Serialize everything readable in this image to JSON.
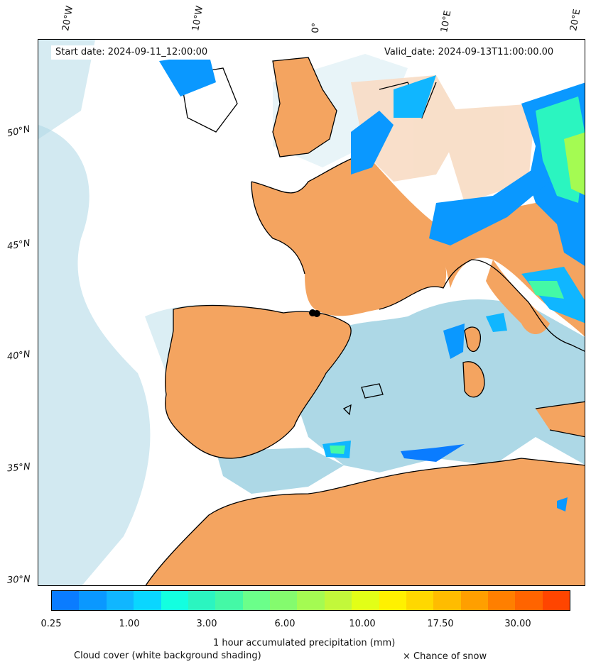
{
  "map": {
    "start_date": "Start date: 2024-09-11_12:00:00",
    "valid_date": "Valid_date: 2024-09-13T11:00:00.00",
    "lon_labels": [
      "20°W",
      "10°W",
      "0°",
      "10°E",
      "20°E"
    ],
    "lat_labels": [
      "50°N",
      "45°N",
      "40°N",
      "35°N",
      "30°N"
    ],
    "colors": {
      "land_dry": "#f4a460",
      "cloud": "#add8e6",
      "coastline": "#000000"
    }
  },
  "colorbar": {
    "colors": [
      "#0a7cff",
      "#0a98ff",
      "#10b6ff",
      "#0ad6ff",
      "#13ffe0",
      "#2bf5c0",
      "#44f9a6",
      "#6bff8a",
      "#84fb6e",
      "#a4fb52",
      "#c2f83a",
      "#e2ff17",
      "#fff100",
      "#ffd800",
      "#ffbc00",
      "#ff9f00",
      "#ff7f00",
      "#ff6400",
      "#ff4500"
    ],
    "tick_labels": [
      "0.25",
      "1.00",
      "3.00",
      "6.00",
      "10.00",
      "17.50",
      "30.00"
    ],
    "label": "1 hour accumulated precipitation (mm)"
  },
  "captions": {
    "cloud_cover": "Cloud cover (white background shading)",
    "snow": "× Chance of snow"
  }
}
